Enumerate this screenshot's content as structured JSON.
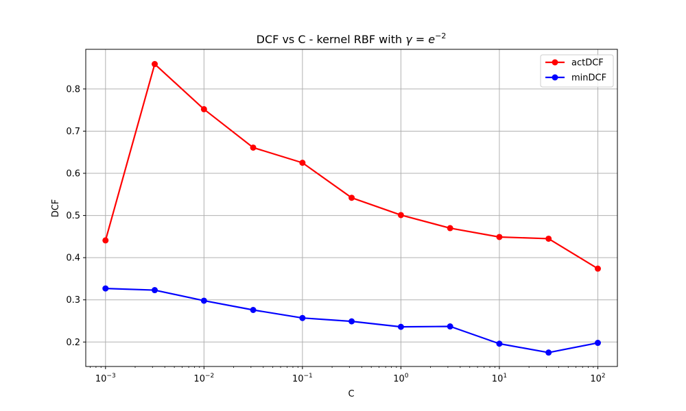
{
  "chart_data": {
    "type": "line",
    "title": "DCF vs C - kernel RBF with γ = e⁻²",
    "title_parts": {
      "prefix": "DCF vs C - kernel RBF with ",
      "var": "γ",
      "eq": " = ",
      "base": "e",
      "exp": "−2"
    },
    "xlabel": "C",
    "ylabel": "DCF",
    "xscale": "log",
    "xlim": [
      0.00063,
      158
    ],
    "ylim": [
      0.142,
      0.894
    ],
    "grid": true,
    "legend_position": "top-right",
    "x": [
      0.001,
      0.00316,
      0.01,
      0.0316,
      0.1,
      0.316,
      1,
      3.16,
      10,
      31.6,
      100
    ],
    "x_ticks": [
      {
        "value": 0.001,
        "base": "10",
        "exp": "−3"
      },
      {
        "value": 0.01,
        "base": "10",
        "exp": "−2"
      },
      {
        "value": 0.1,
        "base": "10",
        "exp": "−1"
      },
      {
        "value": 1,
        "base": "10",
        "exp": "0"
      },
      {
        "value": 10,
        "base": "10",
        "exp": "1"
      },
      {
        "value": 100,
        "base": "10",
        "exp": "2"
      }
    ],
    "y_ticks": [
      {
        "value": 0.2,
        "label": "0.2"
      },
      {
        "value": 0.3,
        "label": "0.3"
      },
      {
        "value": 0.4,
        "label": "0.4"
      },
      {
        "value": 0.5,
        "label": "0.5"
      },
      {
        "value": 0.6,
        "label": "0.6"
      },
      {
        "value": 0.7,
        "label": "0.7"
      },
      {
        "value": 0.8,
        "label": "0.8"
      }
    ],
    "series": [
      {
        "name": "actDCF",
        "color": "#ff0000",
        "values": [
          0.441,
          0.859,
          0.752,
          0.661,
          0.625,
          0.542,
          0.501,
          0.47,
          0.449,
          0.445,
          0.374
        ]
      },
      {
        "name": "minDCF",
        "color": "#0000ff",
        "values": [
          0.327,
          0.323,
          0.298,
          0.276,
          0.257,
          0.249,
          0.236,
          0.237,
          0.196,
          0.175,
          0.198
        ]
      }
    ]
  }
}
